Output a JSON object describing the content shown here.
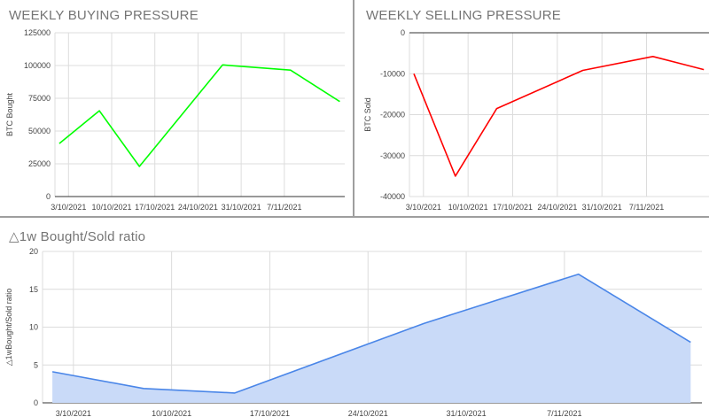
{
  "chart_data": [
    {
      "id": "buy",
      "type": "line",
      "title": "WEEKLY BUYING PRESSURE",
      "xlabel": "",
      "ylabel": "BTC Bought",
      "color": "#00ff00",
      "fill": false,
      "x_ticks": [
        "3/10/2021",
        "10/10/2021",
        "17/10/2021",
        "24/10/2021",
        "31/10/2021",
        "7/11/2021"
      ],
      "y_ticks": [
        "0",
        "25000",
        "50000",
        "75000",
        "100000",
        "125000"
      ],
      "ylim": [
        0,
        125000
      ],
      "series": [
        {
          "x": [
            -1.5,
            5,
            11.5,
            25,
            36,
            44
          ],
          "values": [
            40500,
            65500,
            23000,
            100500,
            96500,
            72500
          ]
        }
      ]
    },
    {
      "id": "sell",
      "type": "line",
      "title": "WEEKLY SELLING PRESSURE",
      "xlabel": "",
      "ylabel": "BTC Sold",
      "color": "#ff0000",
      "fill": false,
      "x_ticks": [
        "3/10/2021",
        "10/10/2021",
        "17/10/2021",
        "24/10/2021",
        "31/10/2021",
        "7/11/2021"
      ],
      "y_ticks": [
        "-40000",
        "-30000",
        "-20000",
        "-10000",
        "0"
      ],
      "ylim": [
        -40000,
        0
      ],
      "series": [
        {
          "x": [
            -1.5,
            5,
            11.5,
            25,
            36,
            44
          ],
          "values": [
            -10000,
            -35000,
            -18500,
            -9200,
            -5800,
            -9000
          ]
        }
      ]
    },
    {
      "id": "ratio",
      "type": "area",
      "title": "△1w Bought/Sold ratio",
      "xlabel": "",
      "ylabel": "△1wBought/Sold ratio",
      "color": "#4a86e8",
      "fill_color": "#c9daf8",
      "fill": true,
      "x_ticks": [
        "3/10/2021",
        "10/10/2021",
        "17/10/2021",
        "24/10/2021",
        "31/10/2021",
        "7/11/2021"
      ],
      "y_ticks": [
        "0",
        "5",
        "10",
        "15",
        "20"
      ],
      "ylim": [
        0,
        20
      ],
      "series": [
        {
          "x": [
            -1.5,
            5,
            11.5,
            25,
            36,
            44
          ],
          "values": [
            4.1,
            1.9,
            1.3,
            10.5,
            17.0,
            8.0
          ]
        }
      ]
    }
  ]
}
